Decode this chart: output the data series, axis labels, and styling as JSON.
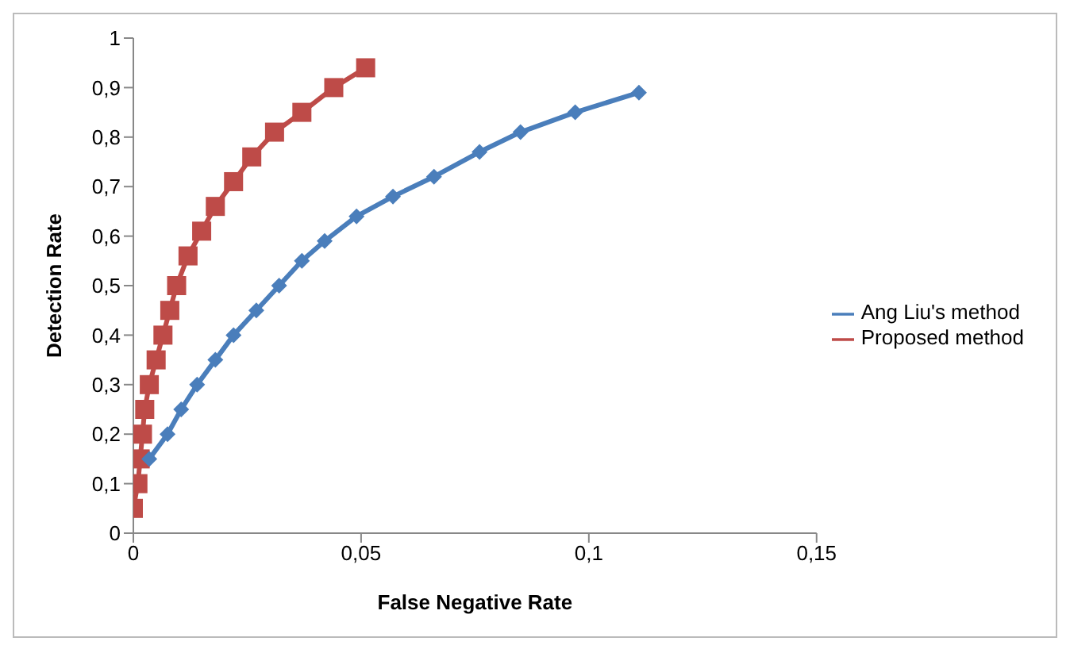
{
  "chart_data": {
    "type": "line",
    "xlabel": "False Negative Rate",
    "ylabel": "Detection Rate",
    "xlim": [
      0,
      0.15
    ],
    "ylim": [
      0,
      1
    ],
    "xticks": [
      0,
      {
        "value": 0.05,
        "label": "0,05"
      },
      {
        "value": 0.1,
        "label": "0,1"
      },
      {
        "value": 0.15,
        "label": "0,15"
      }
    ],
    "yticks": [
      0,
      {
        "value": 0.1,
        "label": "0,1"
      },
      {
        "value": 0.2,
        "label": "0,2"
      },
      {
        "value": 0.3,
        "label": "0,3"
      },
      {
        "value": 0.4,
        "label": "0,4"
      },
      {
        "value": 0.5,
        "label": "0,5"
      },
      {
        "value": 0.6,
        "label": "0,6"
      },
      {
        "value": 0.7,
        "label": "0,7"
      },
      {
        "value": 0.8,
        "label": "0,8"
      },
      {
        "value": 0.9,
        "label": "0,9"
      },
      1
    ],
    "grid": false,
    "legend": "right",
    "line_style": "solid",
    "series": [
      {
        "name": "Ang Liu's method",
        "color": "#4a7ebb",
        "marker": "diamond",
        "x": [
          0.0035,
          0.0075,
          0.0105,
          0.014,
          0.018,
          0.022,
          0.027,
          0.032,
          0.037,
          0.042,
          0.049,
          0.057,
          0.066,
          0.076,
          0.085,
          0.097,
          0.111
        ],
        "values": [
          0.15,
          0.2,
          0.25,
          0.3,
          0.35,
          0.4,
          0.45,
          0.5,
          0.55,
          0.59,
          0.64,
          0.68,
          0.72,
          0.77,
          0.81,
          0.85,
          0.89
        ]
      },
      {
        "name": "Proposed method",
        "color": "#be4b48",
        "marker": "square",
        "x": [
          0,
          0.001,
          0.0015,
          0.002,
          0.0025,
          0.0035,
          0.005,
          0.0065,
          0.008,
          0.0095,
          0.012,
          0.015,
          0.018,
          0.022,
          0.026,
          0.031,
          0.037,
          0.044,
          0.051
        ],
        "values": [
          0.05,
          0.1,
          0.15,
          0.2,
          0.25,
          0.3,
          0.35,
          0.4,
          0.45,
          0.5,
          0.56,
          0.61,
          0.66,
          0.71,
          0.76,
          0.81,
          0.85,
          0.9,
          0.94
        ]
      }
    ]
  }
}
